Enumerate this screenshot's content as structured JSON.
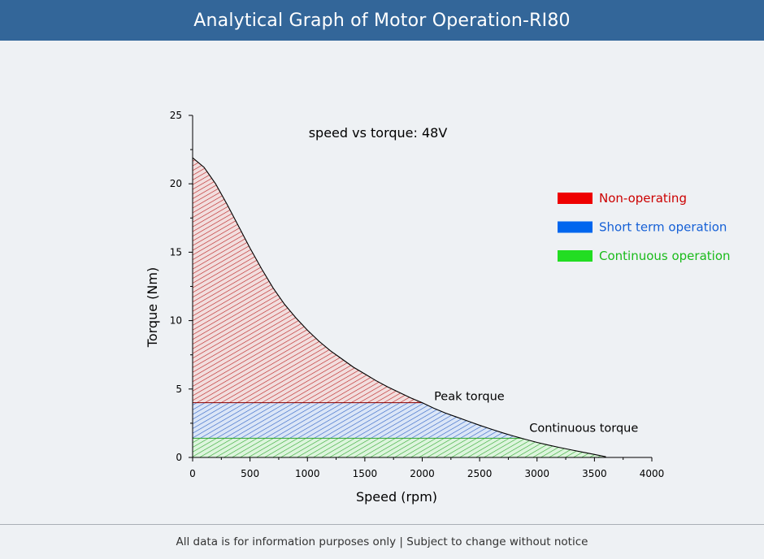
{
  "header": {
    "title": "Analytical Graph of Motor Operation-RI80"
  },
  "footer": {
    "text": "All data is for information purposes only | Subject to change without notice"
  },
  "chart_data": {
    "type": "area",
    "title": "speed vs torque: 48V",
    "xlabel": "Speed (rpm)",
    "ylabel": "Torque (Nm)",
    "xlim": [
      0,
      4000
    ],
    "ylim": [
      0,
      25
    ],
    "xticks": [
      0,
      500,
      1000,
      1500,
      2000,
      2500,
      3000,
      3500,
      4000
    ],
    "yticks": [
      0,
      5,
      10,
      15,
      20,
      25
    ],
    "grid": false,
    "legend_position": "right",
    "curve": {
      "x": [
        0,
        100,
        200,
        300,
        400,
        500,
        600,
        700,
        800,
        900,
        1000,
        1100,
        1200,
        1300,
        1400,
        1500,
        1600,
        1700,
        1800,
        1900,
        2000,
        2100,
        2200,
        2300,
        2400,
        2500,
        2600,
        2700,
        2800,
        2900,
        3000,
        3100,
        3200,
        3300,
        3400,
        3500,
        3600
      ],
      "y": [
        21.9,
        21.2,
        20.0,
        18.5,
        16.9,
        15.3,
        13.8,
        12.4,
        11.2,
        10.2,
        9.3,
        8.5,
        7.8,
        7.2,
        6.6,
        6.1,
        5.6,
        5.15,
        4.75,
        4.35,
        4.0,
        3.6,
        3.25,
        2.95,
        2.65,
        2.35,
        2.07,
        1.8,
        1.55,
        1.32,
        1.1,
        0.9,
        0.72,
        0.55,
        0.38,
        0.22,
        0.05
      ]
    },
    "peak_torque": 4.0,
    "continuous_torque": 1.4,
    "series": [
      {
        "name": "Non-operating",
        "color": "#ee0000"
      },
      {
        "name": "Short term operation",
        "color": "#0066ee"
      },
      {
        "name": "Continuous operation",
        "color": "#22dd22"
      }
    ],
    "annotations": [
      {
        "text": "Peak torque",
        "x": 1990,
        "y": 4.0
      },
      {
        "text": "Continuous torque",
        "x": 2890,
        "y": 1.4
      }
    ]
  }
}
